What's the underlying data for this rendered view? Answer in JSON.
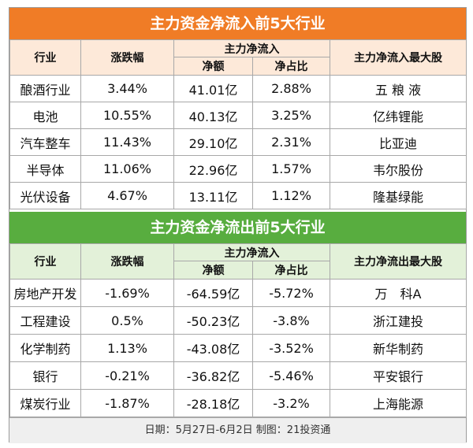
{
  "inflow": {
    "title": "主力资金净流入前5大行业",
    "headers": {
      "industry": "行业",
      "change": "涨跌幅",
      "net_group": "主力净流入",
      "net_amount": "净额",
      "net_ratio": "净占比",
      "top_stock": "主力净流入最大股"
    },
    "rows": [
      {
        "industry": "酿酒行业",
        "change": "3.44%",
        "amount": "41.01亿",
        "ratio": "2.88%",
        "stock": "五 粮 液"
      },
      {
        "industry": "电池",
        "change": "10.55%",
        "amount": "40.13亿",
        "ratio": "3.25%",
        "stock": "亿纬锂能"
      },
      {
        "industry": "汽车整车",
        "change": "11.43%",
        "amount": "29.10亿",
        "ratio": "2.31%",
        "stock": "比亚迪"
      },
      {
        "industry": "半导体",
        "change": "11.06%",
        "amount": "22.96亿",
        "ratio": "1.57%",
        "stock": "韦尔股份"
      },
      {
        "industry": "光伏设备",
        "change": "4.67%",
        "amount": "13.11亿",
        "ratio": "1.12%",
        "stock": "隆基绿能"
      }
    ]
  },
  "outflow": {
    "title": "主力资金净流出前5大行业",
    "headers": {
      "industry": "行业",
      "change": "涨跌幅",
      "net_group": "主力净流入",
      "net_amount": "净额",
      "net_ratio": "净占比",
      "top_stock": "主力净流出最大股"
    },
    "rows": [
      {
        "industry": "房地产开发",
        "change": "-1.69%",
        "amount": "-64.59亿",
        "ratio": "-5.72%",
        "stock": "万　科A"
      },
      {
        "industry": "工程建设",
        "change": "0.5%",
        "amount": "-50.23亿",
        "ratio": "-3.8%",
        "stock": "浙江建投"
      },
      {
        "industry": "化学制药",
        "change": "1.13%",
        "amount": "-43.08亿",
        "ratio": "-3.52%",
        "stock": "新华制药"
      },
      {
        "industry": "银行",
        "change": "-0.21%",
        "amount": "-36.82亿",
        "ratio": "-5.46%",
        "stock": "平安银行"
      },
      {
        "industry": "煤炭行业",
        "change": "-1.87%",
        "amount": "-28.18亿",
        "ratio": "-3.2%",
        "stock": "上海能源"
      }
    ]
  },
  "footer": "日期：5月27日-6月2日 制图：21投资通",
  "colors": {
    "inflow_accent": "#f07c26",
    "inflow_header_bg": "#fde9d9",
    "outflow_accent": "#58ad3f",
    "outflow_header_bg": "#e3f1d9"
  }
}
